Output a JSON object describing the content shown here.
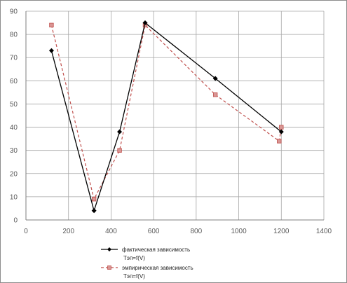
{
  "chart_data": {
    "type": "line",
    "title": "",
    "xlabel": "",
    "ylabel": "",
    "xlim": [
      0,
      1400
    ],
    "ylim": [
      0,
      90
    ],
    "x_ticks": [
      "0",
      "200",
      "400",
      "600",
      "800",
      "1000",
      "1200",
      "1400"
    ],
    "y_ticks": [
      "0",
      "10",
      "20",
      "30",
      "40",
      "50",
      "60",
      "70",
      "80",
      "90"
    ],
    "grid": "major",
    "legend_position": "bottom",
    "series": [
      {
        "name": "фактическая зависимость",
        "name_line2": "Tэп=f(V)",
        "color": "#000000",
        "style": "solid",
        "marker": "diamond",
        "x": [
          120,
          320,
          440,
          560,
          890,
          1200
        ],
        "y": [
          73,
          4,
          38,
          85,
          61,
          38
        ]
      },
      {
        "name": "эмпирическая зависимость",
        "name_line2": "Tэп=f(V)",
        "color": "#c0504d",
        "style": "dashed",
        "marker": "square",
        "x": [
          120,
          320,
          440,
          560,
          890,
          1190,
          1200
        ],
        "y": [
          84,
          9,
          30,
          84,
          54,
          34,
          40
        ]
      }
    ]
  }
}
